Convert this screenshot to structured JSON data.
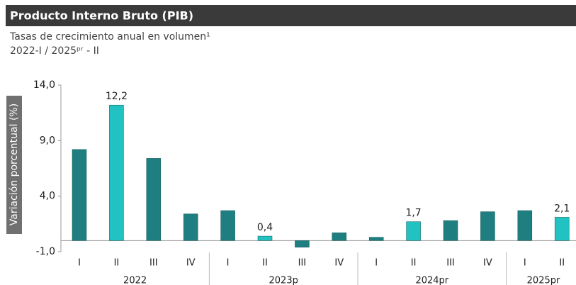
{
  "chart_data": {
    "type": "bar",
    "title": "Producto Interno Bruto (PIB)",
    "subtitle": [
      "Tasas de crecimiento anual en volumen¹",
      "2022-I / 2025ᵖʳ - II"
    ],
    "ylabel": "Variación porcentual (%)",
    "groups": [
      {
        "label": "2022",
        "categories": [
          "I",
          "II",
          "III",
          "IV"
        ]
      },
      {
        "label": "2023p",
        "categories": [
          "I",
          "II",
          "III",
          "IV"
        ]
      },
      {
        "label": "2024pr",
        "categories": [
          "I",
          "II",
          "III",
          "IV"
        ]
      },
      {
        "label": "2025pr",
        "categories": [
          "I",
          "II"
        ]
      }
    ],
    "values": [
      8.2,
      12.2,
      7.4,
      2.4,
      2.7,
      0.4,
      -0.6,
      0.7,
      0.3,
      1.7,
      1.8,
      2.6,
      2.7,
      2.1
    ],
    "value_labels": [
      null,
      "12,2",
      null,
      null,
      null,
      "0,4",
      null,
      null,
      null,
      "1,7",
      null,
      null,
      null,
      "2,1"
    ],
    "colors": [
      "#1f7f80",
      "#22c2c2",
      "#1f7f80",
      "#1f7f80",
      "#1f7f80",
      "#22c2c2",
      "#1f7f80",
      "#1f7f80",
      "#1f7f80",
      "#22c2c2",
      "#1f7f80",
      "#1f7f80",
      "#1f7f80",
      "#22c2c2"
    ],
    "ylim": [
      -1,
      14
    ],
    "yticks": [
      {
        "value": -1,
        "label": "-1,0"
      },
      {
        "value": 4,
        "label": "4,0"
      },
      {
        "value": 9,
        "label": "9,0"
      },
      {
        "value": 14,
        "label": "14,0"
      }
    ]
  }
}
